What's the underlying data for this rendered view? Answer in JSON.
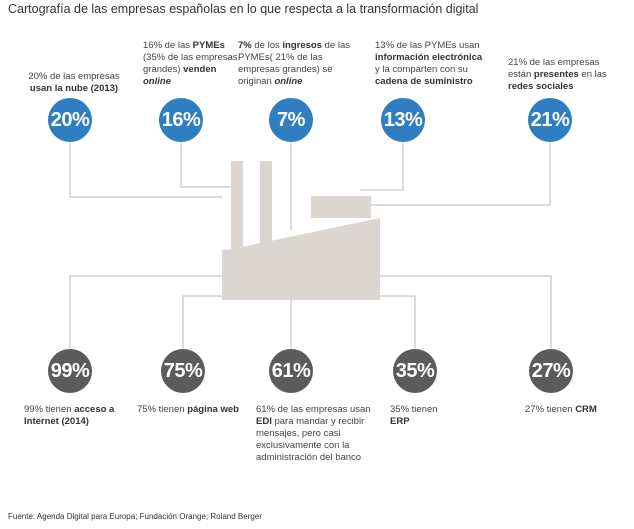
{
  "title": "Cartografía de las empresas españolas en lo que respecta a la transformación digital",
  "source": "Fuente: Agenda Digital para Europa; Fundación Orange; Roland Berger",
  "colors": {
    "top_circle": "#2f7ec1",
    "bottom_circle": "#5b5b5b",
    "factory": "#dcd6d0",
    "lines": "#b8b8b8"
  },
  "top": [
    {
      "value": "20%",
      "pre": "20% de las empresas ",
      "b1": "usan la nube",
      "post": " (2013)"
    },
    {
      "value": "16%",
      "pre": "16% de las ",
      "b1": "PYMEs",
      "mid": " (35% de las empresas grandes) ",
      "b2": "venden ",
      "b3": "online"
    },
    {
      "value": "7%",
      "b1": "7%",
      "pre": " de los ",
      "b2": "ingresos",
      "mid": " de las PYMEs( 21% de las empresas grandes) se originan ",
      "b3": "online"
    },
    {
      "value": "13%",
      "pre": "13% de las PYMEs usan ",
      "b1": "información electrónica",
      "mid": " y la comparten con su ",
      "b2": "cadena de suministro"
    },
    {
      "value": "21%",
      "pre": "21% de las empresas están ",
      "b1": "presentes",
      "mid": " en las ",
      "b2": "redes sociales"
    }
  ],
  "bottom": [
    {
      "value": "99%",
      "pre": "99% tienen ",
      "b1": "acceso a Internet",
      "post": " (2014)"
    },
    {
      "value": "75%",
      "pre": "75% tienen ",
      "b1": "página web"
    },
    {
      "value": "61%",
      "pre": "61% de las empresas usan ",
      "b1": "EDI",
      "post": " para mandar y recibir mensajes, pero casi exclusivamente con la administración del banco"
    },
    {
      "value": "35%",
      "pre": "35% tienen ",
      "b1": "ERP"
    },
    {
      "value": "27%",
      "pre": "27% tienen ",
      "b1": "CRM"
    }
  ]
}
